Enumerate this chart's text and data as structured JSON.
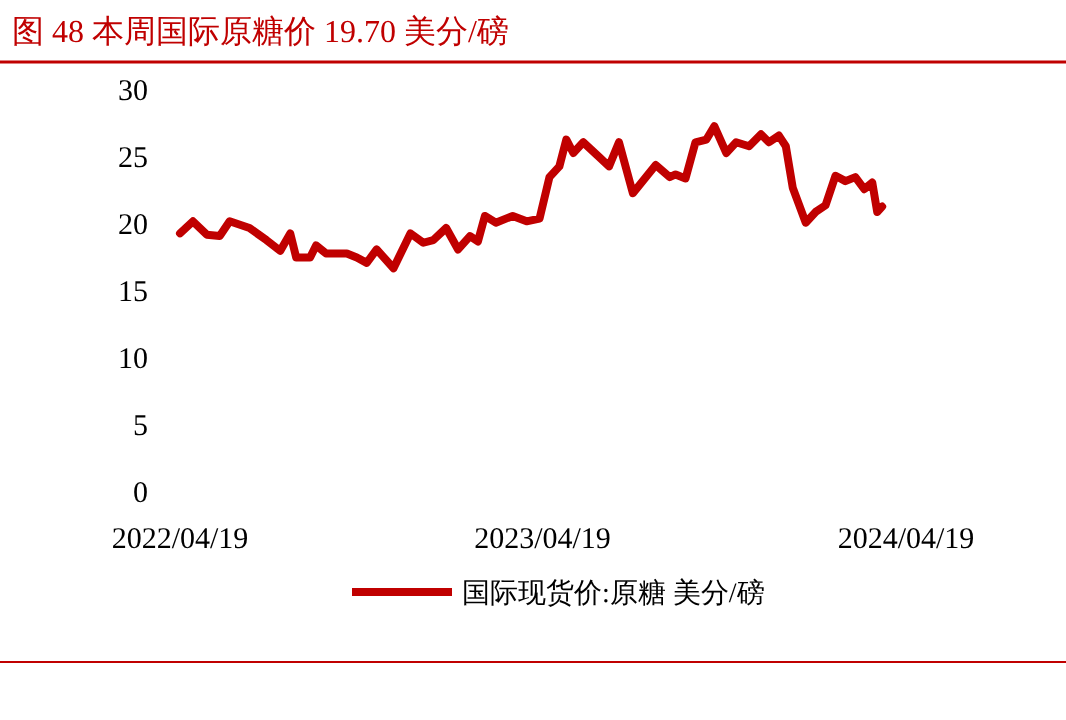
{
  "chart_data": {
    "type": "line",
    "title": "图 48   本周国际原糖价 19.70 美分/磅",
    "x": [
      "2022-04-19",
      "2022-05-02",
      "2022-05-16",
      "2022-05-29",
      "2022-06-08",
      "2022-06-28",
      "2022-07-15",
      "2022-07-29",
      "2022-08-08",
      "2022-08-14",
      "2022-08-28",
      "2022-09-03",
      "2022-09-13",
      "2022-10-04",
      "2022-10-14",
      "2022-10-24",
      "2022-11-03",
      "2022-11-20",
      "2022-12-07",
      "2022-12-20",
      "2022-12-30",
      "2023-01-12",
      "2023-01-24",
      "2023-02-05",
      "2023-02-13",
      "2023-02-20",
      "2023-03-03",
      "2023-03-20",
      "2023-04-03",
      "2023-04-16",
      "2023-04-26",
      "2023-05-06",
      "2023-05-13",
      "2023-05-20",
      "2023-05-30",
      "2023-06-15",
      "2023-06-25",
      "2023-07-05",
      "2023-07-19",
      "2023-08-11",
      "2023-08-25",
      "2023-08-31",
      "2023-09-10",
      "2023-09-20",
      "2023-10-01",
      "2023-10-09",
      "2023-10-21",
      "2023-10-31",
      "2023-11-13",
      "2023-11-25",
      "2023-12-03",
      "2023-12-13",
      "2023-12-20",
      "2023-12-27",
      "2024-01-09",
      "2024-01-19",
      "2024-01-29",
      "2024-02-08",
      "2024-02-18",
      "2024-02-28",
      "2024-03-08",
      "2024-03-16",
      "2024-03-21",
      "2024-03-26"
    ],
    "series": [
      {
        "name": "国际现货价:原糖 美分/磅",
        "color": "#c00000",
        "values": [
          19.3,
          20.2,
          19.2,
          19.1,
          20.2,
          19.7,
          18.8,
          18.0,
          19.3,
          17.5,
          17.5,
          18.4,
          17.8,
          17.8,
          17.5,
          17.1,
          18.1,
          16.7,
          19.3,
          18.6,
          18.8,
          19.7,
          18.1,
          19.1,
          18.7,
          20.6,
          20.1,
          20.6,
          20.2,
          20.4,
          23.5,
          24.3,
          26.3,
          25.3,
          26.1,
          25.0,
          24.3,
          26.1,
          22.3,
          24.4,
          23.5,
          23.7,
          23.4,
          26.1,
          26.3,
          27.3,
          25.3,
          26.1,
          25.8,
          26.7,
          26.1,
          26.6,
          25.8,
          22.7,
          20.1,
          20.9,
          21.4,
          23.6,
          23.2,
          23.5,
          22.6,
          23.1,
          20.9,
          21.3
        ]
      }
    ],
    "xlim": [
      "2022-04-19",
      "2024-04-19"
    ],
    "ylim": [
      0,
      30
    ],
    "xticks": [
      {
        "value": "2022-04-19",
        "label": "2022/04/19"
      },
      {
        "value": "2023-04-19",
        "label": "2023/04/19"
      },
      {
        "value": "2024-04-19",
        "label": "2024/04/19"
      }
    ],
    "yticks": [
      0,
      5,
      10,
      15,
      20,
      25,
      30
    ],
    "legend": "bottom"
  }
}
